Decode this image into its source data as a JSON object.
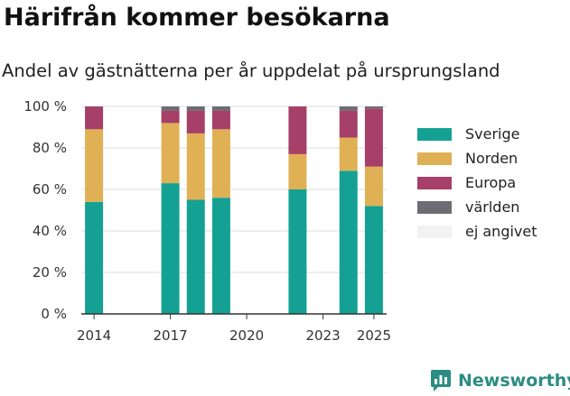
{
  "header": {
    "title": "Härifrån kommer besökarna",
    "subtitle": "Andel av gästnätterna per år uppdelat på ursprungsland"
  },
  "brand": {
    "name": "Newsworthy",
    "color": "#2b8c82",
    "logo_icon": "newsworthy-logo-icon"
  },
  "chart_data": {
    "type": "bar",
    "stacked": true,
    "unit": "%",
    "x": [
      2014,
      2017,
      2018,
      2019,
      2022,
      2024,
      2025
    ],
    "x_ticks": [
      "2014",
      "2017",
      "2020",
      "2023",
      "2025"
    ],
    "y_ticks": [
      "0 %",
      "20 %",
      "40 %",
      "60 %",
      "80 %",
      "100 %"
    ],
    "ylim": [
      0,
      100
    ],
    "xlim": [
      2013.5,
      2025.5
    ],
    "grid": true,
    "legend_position": "right",
    "series": [
      {
        "name": "Sverige",
        "color": "#14a193",
        "values": [
          54,
          63,
          55,
          56,
          60,
          69,
          52
        ]
      },
      {
        "name": "Norden",
        "color": "#e0b055",
        "values": [
          35,
          29,
          32,
          33,
          17,
          16,
          19
        ]
      },
      {
        "name": "Europa",
        "color": "#a64068",
        "values": [
          11,
          6,
          11,
          9,
          23,
          13,
          28
        ]
      },
      {
        "name": "världen",
        "color": "#6c6c72",
        "values": [
          0,
          2,
          2,
          2,
          0,
          2,
          1
        ]
      },
      {
        "name": "ej angivet",
        "color": "#f2f2f2",
        "values": [
          0,
          0,
          0,
          0,
          0,
          0,
          0
        ]
      }
    ]
  }
}
